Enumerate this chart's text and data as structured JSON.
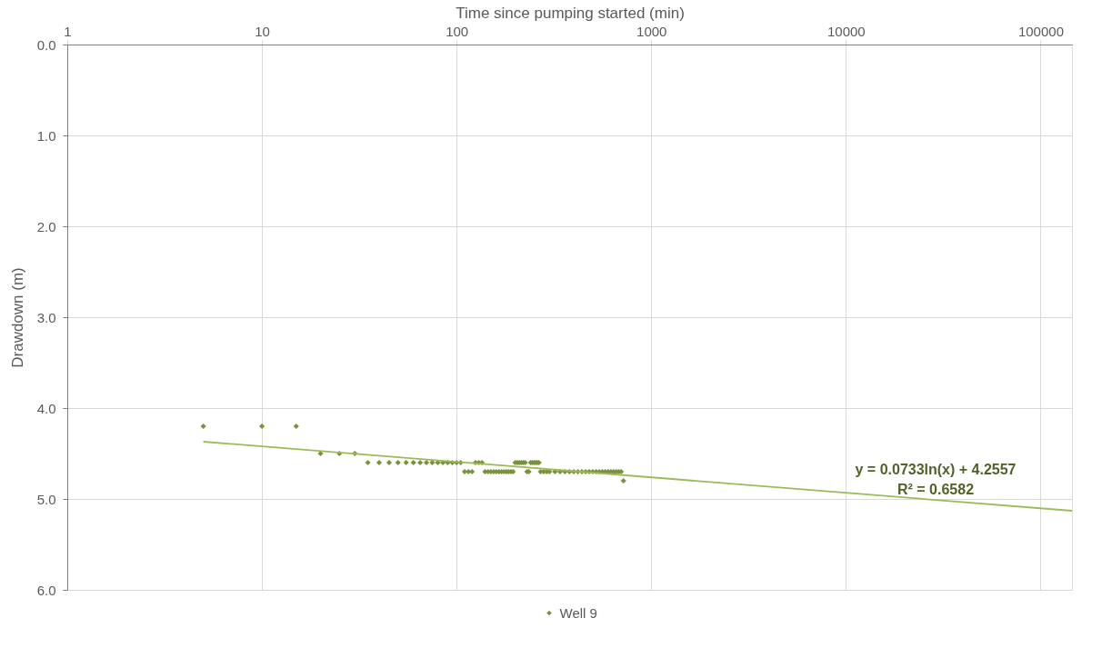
{
  "chart_data": {
    "type": "scatter",
    "xlabel": "Time since pumping started (min)",
    "ylabel": "Drawdown (m)",
    "log": "x",
    "xlim": [
      1,
      145000
    ],
    "xticks": [
      1,
      10,
      100,
      1000,
      10000,
      100000
    ],
    "ylim": [
      6,
      0
    ],
    "yticks": [
      {
        "value": 0,
        "label": "0.0"
      },
      {
        "value": 1,
        "label": "1.0"
      },
      {
        "value": 2,
        "label": "2.0"
      },
      {
        "value": 3,
        "label": "3.0"
      },
      {
        "value": 4,
        "label": "4.0"
      },
      {
        "value": 5,
        "label": "5.0"
      },
      {
        "value": 6,
        "label": "6.0"
      }
    ],
    "grid": true,
    "legend": "bottom",
    "marker": "diamond",
    "annotations": [
      "y = 0.0733ln(x) + 4.2557",
      "R² = 0.6582"
    ],
    "series": [
      {
        "name": "Well 9",
        "color": "#77933c",
        "x": [
          5,
          10,
          15,
          20,
          25,
          30,
          35,
          40,
          45,
          50,
          55,
          60,
          65,
          70,
          75,
          80,
          85,
          90,
          95,
          100,
          105,
          110,
          115,
          120,
          125,
          130,
          135,
          140,
          145,
          150,
          155,
          160,
          165,
          170,
          175,
          180,
          185,
          190,
          195,
          200,
          205,
          210,
          215,
          220,
          225,
          230,
          235,
          240,
          245,
          250,
          255,
          260,
          265,
          270,
          280,
          290,
          300,
          320,
          340,
          360,
          380,
          400,
          420,
          440,
          460,
          480,
          500,
          520,
          540,
          560,
          580,
          600,
          620,
          640,
          660,
          680,
          700,
          720
        ],
        "values": [
          4.2,
          4.2,
          4.2,
          4.5,
          4.5,
          4.5,
          4.6,
          4.6,
          4.6,
          4.6,
          4.6,
          4.6,
          4.6,
          4.6,
          4.6,
          4.6,
          4.6,
          4.6,
          4.6,
          4.6,
          4.6,
          4.7,
          4.7,
          4.7,
          4.6,
          4.6,
          4.6,
          4.7,
          4.7,
          4.7,
          4.7,
          4.7,
          4.7,
          4.7,
          4.7,
          4.7,
          4.7,
          4.7,
          4.7,
          4.6,
          4.6,
          4.6,
          4.6,
          4.6,
          4.6,
          4.7,
          4.7,
          4.6,
          4.6,
          4.6,
          4.6,
          4.6,
          4.6,
          4.7,
          4.7,
          4.7,
          4.7,
          4.7,
          4.7,
          4.7,
          4.7,
          4.7,
          4.7,
          4.7,
          4.7,
          4.7,
          4.7,
          4.7,
          4.7,
          4.7,
          4.7,
          4.7,
          4.7,
          4.7,
          4.7,
          4.7,
          4.7,
          4.8
        ]
      },
      {
        "type": "line",
        "marker": "none",
        "color": "#9bbb59",
        "x": [
          5,
          145000
        ],
        "values": [
          4.37,
          5.13
        ]
      }
    ]
  }
}
